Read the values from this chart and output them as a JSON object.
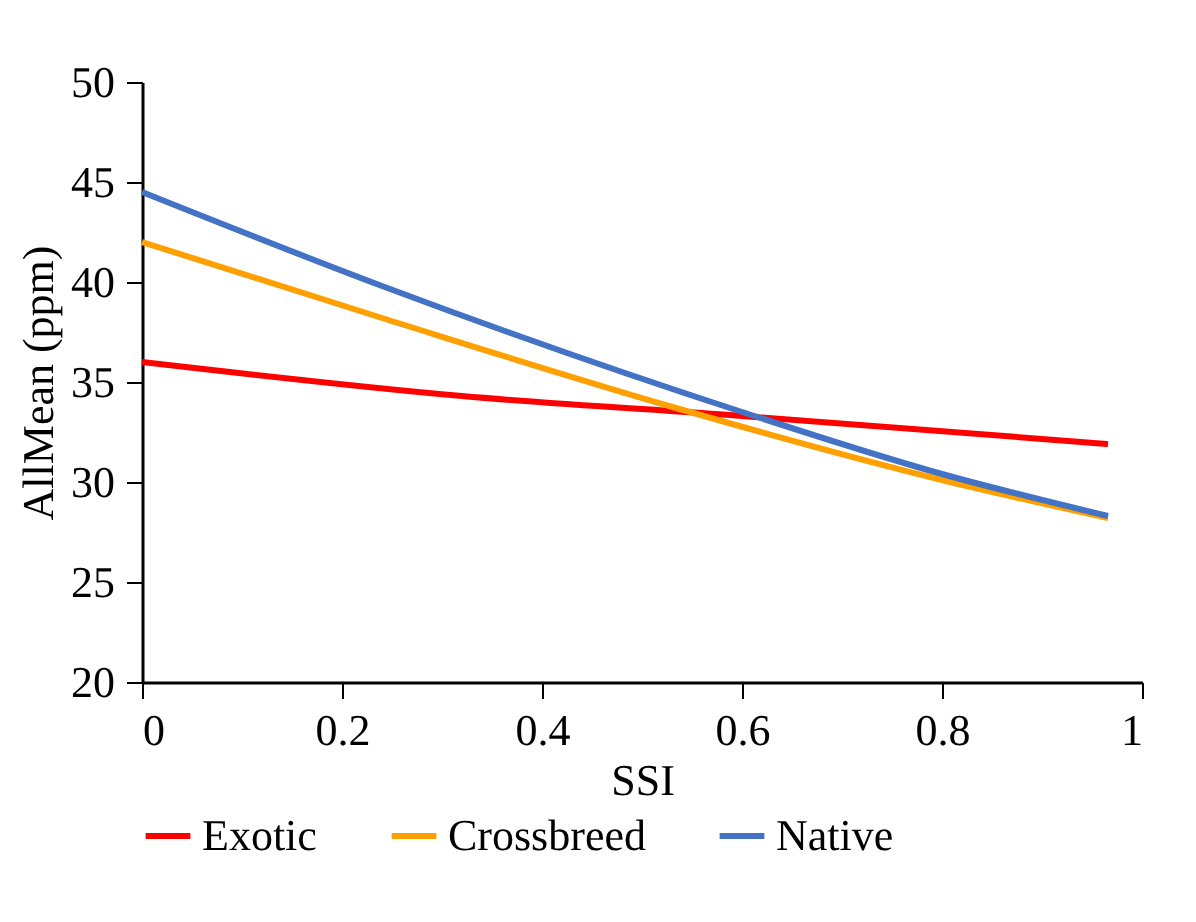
{
  "chart_data": {
    "type": "line",
    "xlabel": "SSI",
    "ylabel": "AllMean (ppm)",
    "xlim": [
      0,
      1
    ],
    "xticks": [
      0,
      0.2,
      0.4,
      0.6,
      0.8,
      1
    ],
    "ylim": [
      20,
      50
    ],
    "yticks": [
      20,
      25,
      30,
      35,
      40,
      45,
      50
    ],
    "grid": false,
    "legend": "bottom",
    "marker": "none",
    "line_style": "solid",
    "series": [
      {
        "name": "Exotic",
        "color": "#ff0000",
        "x": [
          0,
          0.32,
          0.6,
          0.966
        ],
        "values": [
          36.0,
          34.3,
          33.3,
          31.9
        ]
      },
      {
        "name": "Crossbreed",
        "color": "#ffa000",
        "x": [
          0,
          0.24,
          0.534,
          0.8,
          0.966
        ],
        "values": [
          42.0,
          38.2,
          33.7,
          30.1,
          28.2
        ]
      },
      {
        "name": "Native",
        "color": "#4472c4",
        "x": [
          0,
          0.24,
          0.6,
          0.8,
          0.966
        ],
        "values": [
          44.5,
          39.8,
          33.5,
          30.4,
          28.3
        ]
      }
    ]
  }
}
